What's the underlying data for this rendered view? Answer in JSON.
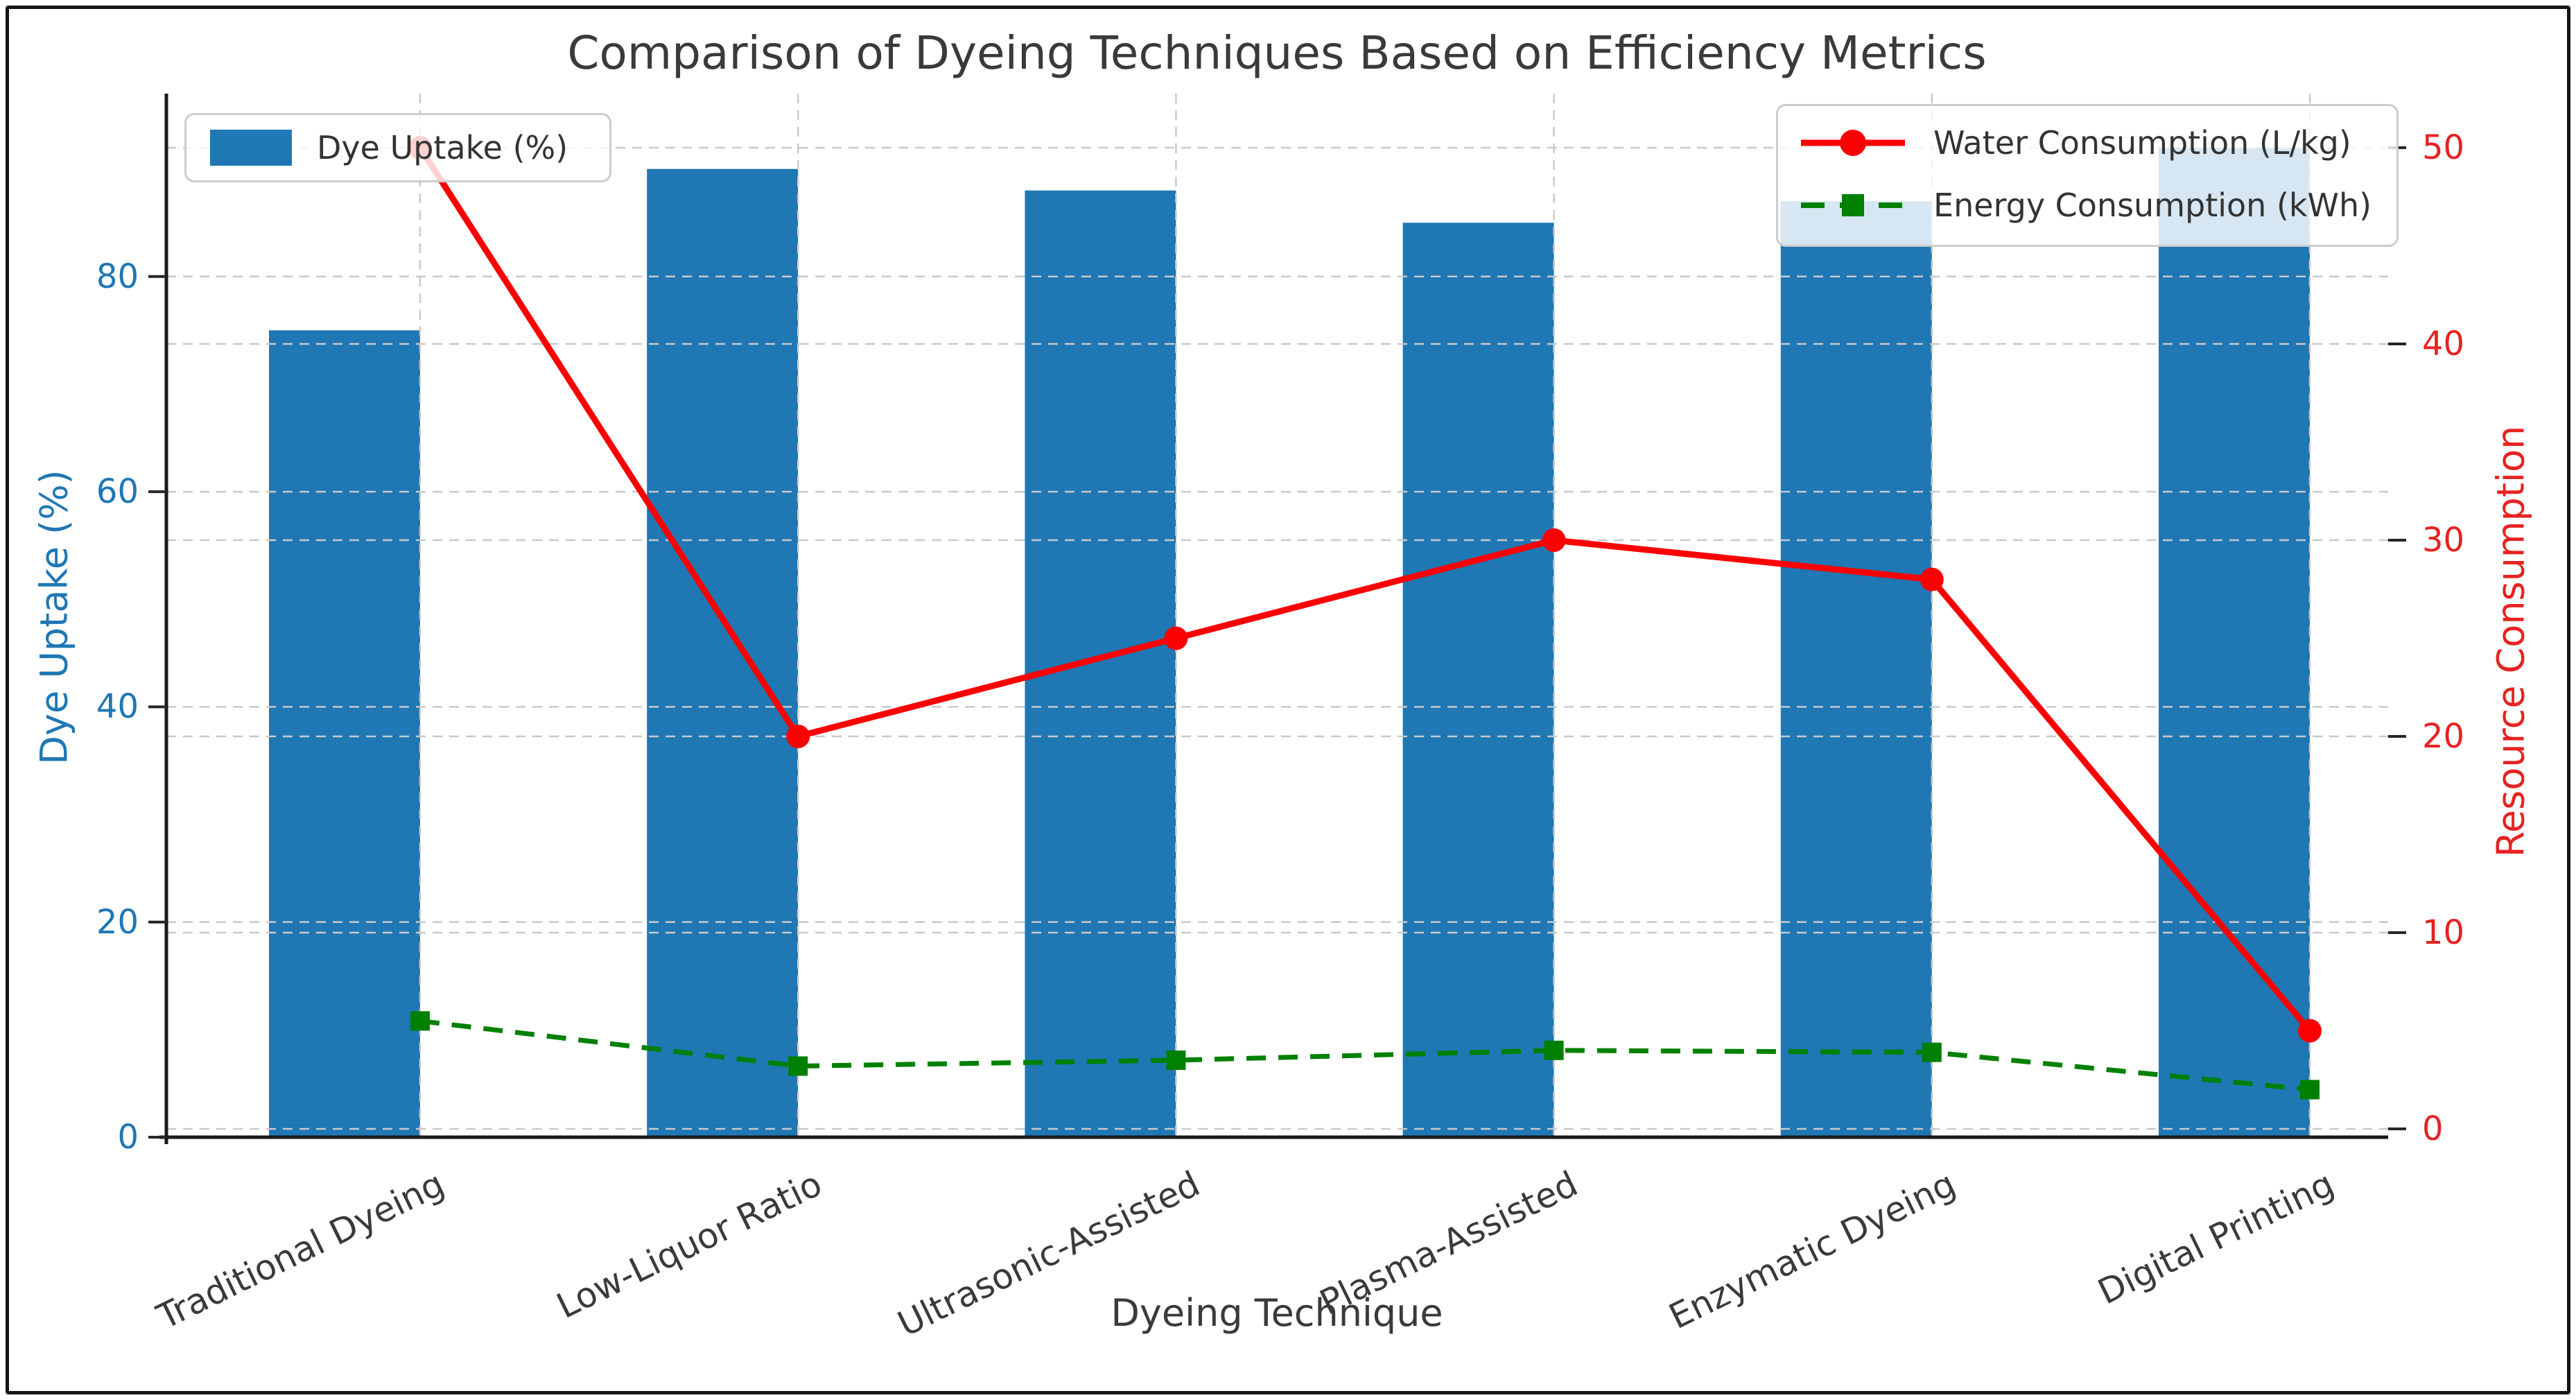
{
  "chart_data": {
    "type": "bar+line-combo",
    "title": "Comparison of Dyeing Techniques Based on Efficiency Metrics",
    "xlabel": "Dyeing Technique",
    "ylabel_left": "Dye Uptake (%)",
    "ylabel_right": "Resource Consumption",
    "categories": [
      "Traditional Dyeing",
      "Low-Liquor Ratio",
      "Ultrasonic-Assisted",
      "Plasma-Assisted",
      "Enzymatic Dyeing",
      "Digital Printing"
    ],
    "series": [
      {
        "name": "Dye Uptake (%)",
        "type": "bar",
        "axis": "left",
        "color": "#1f77b4",
        "values": [
          75,
          90,
          88,
          85,
          87,
          92
        ]
      },
      {
        "name": "Water Consumption (L/kg)",
        "type": "line",
        "axis": "right",
        "color": "#fb0000",
        "marker": "circle",
        "linestyle": "solid",
        "values": [
          50,
          20,
          25,
          30,
          28,
          5
        ]
      },
      {
        "name": "Energy Consumption (kWh)",
        "type": "line",
        "axis": "right",
        "color": "#008000",
        "marker": "square",
        "linestyle": "dashed",
        "values": [
          5.5,
          3.2,
          3.5,
          4.0,
          3.9,
          2.0
        ]
      }
    ],
    "left_axis": {
      "ticks": [
        0,
        20,
        40,
        60,
        80
      ],
      "range": [
        0,
        97
      ],
      "color": "#1f77b4"
    },
    "right_axis": {
      "ticks": [
        0,
        10,
        20,
        30,
        40,
        50
      ],
      "range": [
        -0.4,
        52.8
      ],
      "color": "#e62222"
    },
    "grid": true,
    "legend_position": {
      "bar": "upper-left",
      "lines": "upper-right"
    },
    "grid_color": "#c9c9c9",
    "spine_color": "#1a1a1a"
  }
}
